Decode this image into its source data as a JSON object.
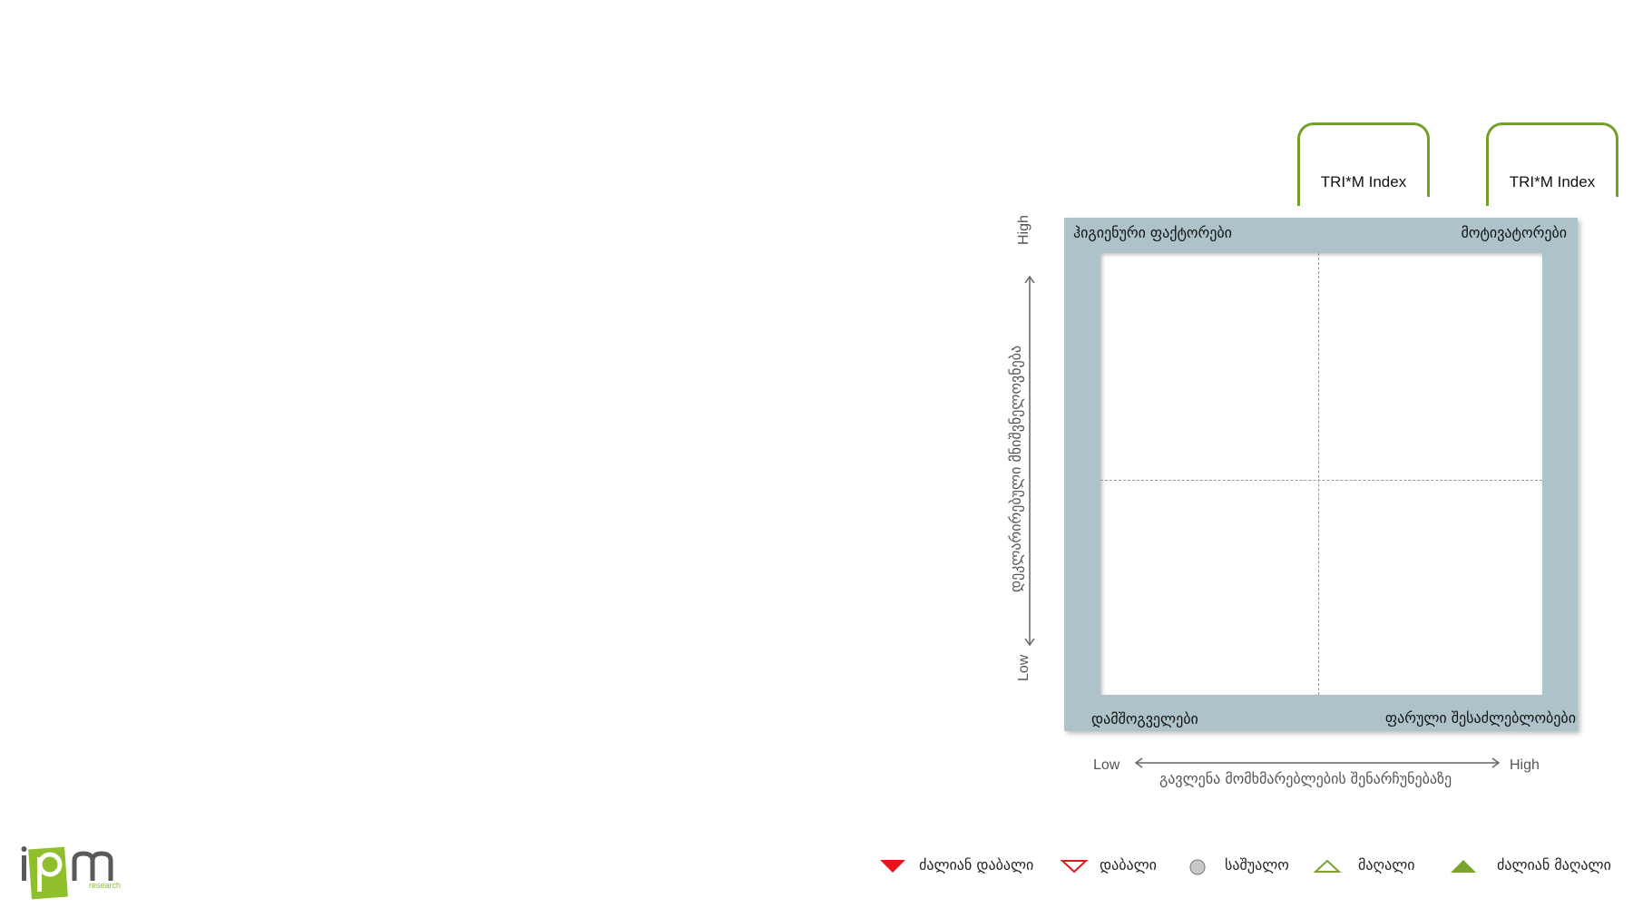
{
  "trim_boxes": [
    {
      "label": "TRI*M Index"
    },
    {
      "label": "TRI*M Index"
    }
  ],
  "matrix": {
    "quadrants": {
      "top_left": "ჰიგიენური ფაქტორები",
      "top_right": "მოტივატორები",
      "bottom_left": "დამშოგველები",
      "bottom_right": "ფარული შესაძლებლობები"
    },
    "y_axis": {
      "high": "High",
      "low": "Low",
      "label": "დეკლარირებული მნიშვნელოვნება"
    },
    "x_axis": {
      "low": "Low",
      "high": "High",
      "label": "გავლენა მომხმარებლების შენარჩუნებაზე"
    }
  },
  "legend": [
    {
      "label": "ძალიან დაბალი",
      "icon": "filled-down-triangle-icon",
      "color": "#e8141c"
    },
    {
      "label": "დაბალი",
      "icon": "outline-down-triangle-icon",
      "color": "#e8141c"
    },
    {
      "label": "საშუალო",
      "icon": "grey-circle-icon",
      "color": "#c8c8c8"
    },
    {
      "label": "მაღალი",
      "icon": "outline-up-triangle-icon",
      "color": "#7ca32e"
    },
    {
      "label": "ძალიან მაღალი",
      "icon": "filled-up-triangle-icon",
      "color": "#7ca32e"
    }
  ],
  "logo": {
    "text": "ipm",
    "subtext": "research"
  },
  "colors": {
    "green": "#72a026",
    "frame": "#adc3c9"
  }
}
